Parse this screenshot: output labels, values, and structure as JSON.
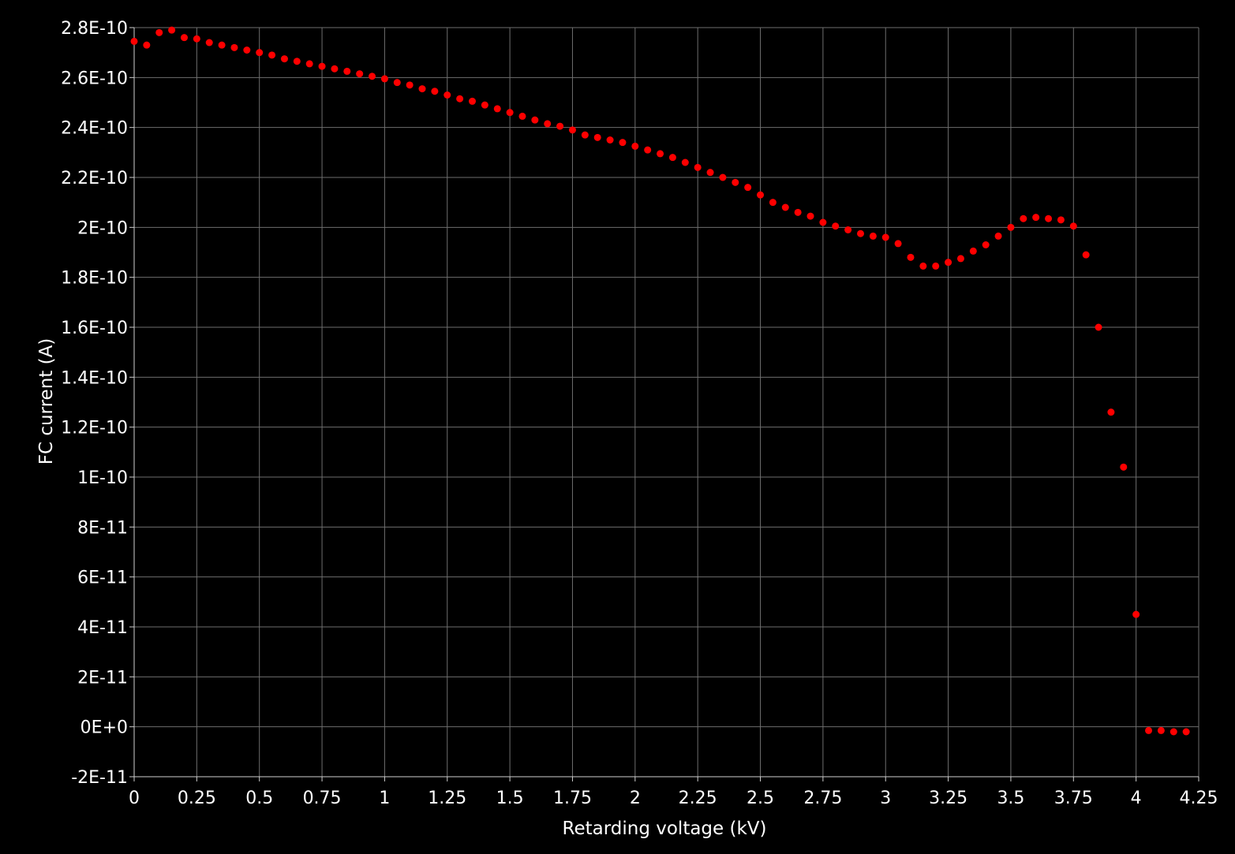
{
  "chart_data": {
    "type": "scatter",
    "title": "",
    "xlabel": "Retarding voltage (kV)",
    "ylabel": "FC current (A)",
    "xlim": [
      0,
      4.25
    ],
    "ylim": [
      -2e-11,
      2.8e-10
    ],
    "x_ticks": [
      "0",
      "0.25",
      "0.5",
      "0.75",
      "1",
      "1.25",
      "1.5",
      "1.75",
      "2",
      "2.25",
      "2.5",
      "2.75",
      "3",
      "3.25",
      "3.5",
      "3.75",
      "4",
      "4.25"
    ],
    "y_ticks": [
      "2.8E-10",
      "2.6E-10",
      "2.4E-10",
      "2.2E-10",
      "2E-10",
      "1.8E-10",
      "1.6E-10",
      "1.4E-10",
      "1.2E-10",
      "1E-10",
      "8E-11",
      "6E-11",
      "4E-11",
      "2E-11",
      "0E+0",
      "-2E-11"
    ],
    "grid": true,
    "marker_color": "#ff0000",
    "background_color": "#000000",
    "grid_color": "#6e6e6e",
    "series": [
      {
        "x": [
          0,
          0.05,
          0.1,
          0.15,
          0.2,
          0.25,
          0.3,
          0.35,
          0.4,
          0.45,
          0.5,
          0.55,
          0.6,
          0.65,
          0.7,
          0.75,
          0.8,
          0.85,
          0.9,
          0.95,
          1.0,
          1.05,
          1.1,
          1.15,
          1.2,
          1.25,
          1.3,
          1.35,
          1.4,
          1.45,
          1.5,
          1.55,
          1.6,
          1.65,
          1.7,
          1.75,
          1.8,
          1.85,
          1.9,
          1.95,
          2.0,
          2.05,
          2.1,
          2.15,
          2.2,
          2.25,
          2.3,
          2.35,
          2.4,
          2.45,
          2.5,
          2.55,
          2.6,
          2.65,
          2.7,
          2.75,
          2.8,
          2.85,
          2.9,
          2.95,
          3.0,
          3.05,
          3.1,
          3.15,
          3.2,
          3.25,
          3.3,
          3.35,
          3.4,
          3.45,
          3.5,
          3.55,
          3.6,
          3.65,
          3.7,
          3.75,
          3.8,
          3.85,
          3.9,
          3.95,
          4.0,
          4.05,
          4.1,
          4.15,
          4.2
        ],
        "y": [
          2.745e-10,
          2.73e-10,
          2.78e-10,
          2.79e-10,
          2.76e-10,
          2.755e-10,
          2.74e-10,
          2.73e-10,
          2.72e-10,
          2.71e-10,
          2.7e-10,
          2.69e-10,
          2.675e-10,
          2.665e-10,
          2.655e-10,
          2.645e-10,
          2.635e-10,
          2.625e-10,
          2.615e-10,
          2.605e-10,
          2.595e-10,
          2.58e-10,
          2.57e-10,
          2.555e-10,
          2.545e-10,
          2.53e-10,
          2.515e-10,
          2.505e-10,
          2.49e-10,
          2.475e-10,
          2.46e-10,
          2.445e-10,
          2.43e-10,
          2.415e-10,
          2.405e-10,
          2.39e-10,
          2.37e-10,
          2.36e-10,
          2.35e-10,
          2.34e-10,
          2.325e-10,
          2.31e-10,
          2.295e-10,
          2.28e-10,
          2.26e-10,
          2.24e-10,
          2.22e-10,
          2.2e-10,
          2.18e-10,
          2.16e-10,
          2.13e-10,
          2.1e-10,
          2.08e-10,
          2.06e-10,
          2.045e-10,
          2.02e-10,
          2.005e-10,
          1.99e-10,
          1.975e-10,
          1.965e-10,
          1.96e-10,
          1.935e-10,
          1.88e-10,
          1.845e-10,
          1.845e-10,
          1.86e-10,
          1.875e-10,
          1.905e-10,
          1.93e-10,
          1.965e-10,
          2e-10,
          2.035e-10,
          2.04e-10,
          2.035e-10,
          2.03e-10,
          2.005e-10,
          1.89e-10,
          1.6e-10,
          1.26e-10,
          1.04e-10,
          4.5e-11,
          -1.5e-12,
          -1.5e-12,
          -2e-12,
          -2e-12
        ]
      }
    ]
  }
}
